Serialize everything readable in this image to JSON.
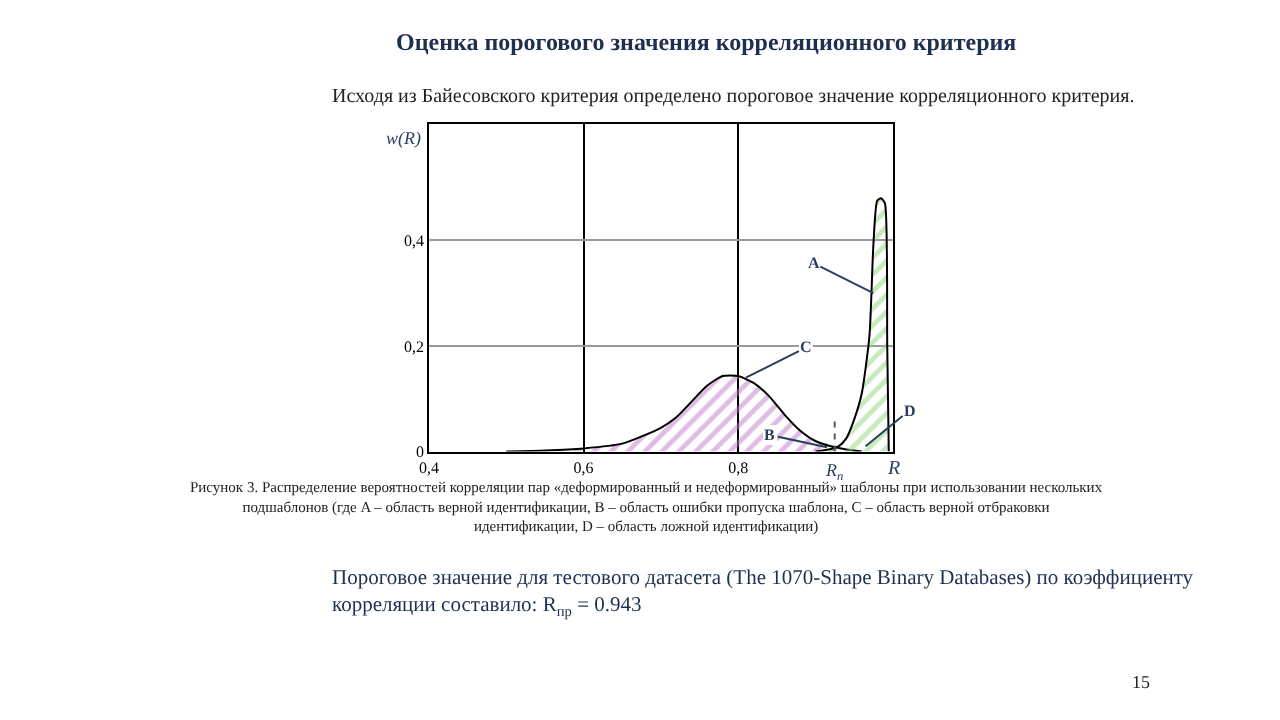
{
  "chart_data": {
    "type": "area",
    "title": "Оценка порогового значения корреляционного критерия",
    "subtitle": "Исходя из Байесовского критерия определено пороговое значение корреляционного критерия.",
    "xlabel": "R",
    "ylabel": "w(R)",
    "series": [
      {
        "color": "#c07ac8",
        "x": [
          0.5,
          0.55,
          0.6,
          0.65,
          0.7,
          0.72,
          0.74,
          0.76,
          0.78,
          0.8,
          0.82,
          0.84,
          0.86,
          0.88,
          0.9,
          0.92,
          0.94,
          0.96
        ],
        "values": [
          0,
          0.002,
          0.006,
          0.015,
          0.045,
          0.065,
          0.095,
          0.125,
          0.143,
          0.143,
          0.13,
          0.105,
          0.07,
          0.04,
          0.02,
          0.01,
          0.004,
          0
        ]
      },
      {
        "color": "#8fd67a",
        "x": [
          0.9,
          0.92,
          0.93,
          0.94,
          0.95,
          0.96,
          0.97,
          0.975,
          0.98,
          0.985,
          0.99,
          0.993,
          0.995
        ],
        "values": [
          0,
          0.005,
          0.01,
          0.025,
          0.06,
          0.11,
          0.22,
          0.39,
          0.475,
          0.48,
          0.47,
          0.2,
          0
        ]
      }
    ],
    "xlim": [
      0.4,
      1.0
    ],
    "xticks": [
      {
        "value": 0.4,
        "label": "0,4"
      },
      {
        "value": 0.6,
        "label": "0,6"
      },
      {
        "value": 0.8,
        "label": "0,8"
      }
    ],
    "ylim": [
      0,
      0.62
    ],
    "yticks": [
      {
        "value": 0,
        "label": "0"
      },
      {
        "value": 0.2,
        "label": "0,2"
      },
      {
        "value": 0.4,
        "label": "0,4"
      }
    ],
    "grid": true,
    "ref_lines": [
      {
        "axis": "x",
        "value": 0.925,
        "label": "R$_{п}$",
        "line_style": "dotted",
        "color": "#555555"
      }
    ],
    "annotations": [
      {
        "text": "A",
        "x": 0.975,
        "y": 0.3
      },
      {
        "text": "B",
        "x": 0.915,
        "y": 0.008
      },
      {
        "text": "C",
        "x": 0.81,
        "y": 0.14
      },
      {
        "text": "D",
        "x": 0.965,
        "y": 0.01
      },
      "Рисунок 3. Распределение вероятностей корреляции пар «деформированный и недеформированный» шаблоны при использовании нескольких подшаблонов (где A – область верной идентификации, B – область ошибки пропуска шаблона, C – область верной отбраковки идентификации, D – область ложной идентификации)",
      "Пороговое значение для тестового датасета (The 1070-Shape Binary Databases) по коэффициенту корреляции составило: R$_{пр}$ = 0.943",
      "15"
    ]
  }
}
